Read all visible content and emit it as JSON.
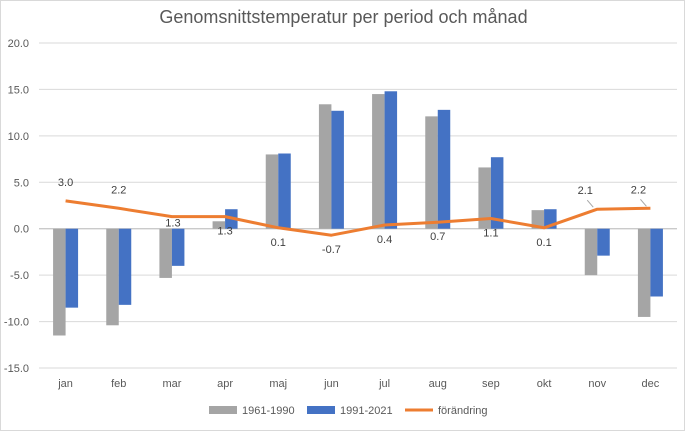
{
  "chart_data": {
    "type": "bar",
    "title": "Genomsnittstemperatur per period och månad",
    "xlabel": "",
    "ylabel": "",
    "ylim": [
      -15,
      20
    ],
    "yticks": [
      "-15.0",
      "-10.0",
      "-5.0",
      "0.0",
      "5.0",
      "10.0",
      "15.0",
      "20.0"
    ],
    "grid": true,
    "legend_position": "bottom",
    "categories": [
      "jan",
      "feb",
      "mar",
      "apr",
      "maj",
      "jun",
      "jul",
      "aug",
      "sep",
      "okt",
      "nov",
      "dec"
    ],
    "series": [
      {
        "name": "1961-1990",
        "type": "bar",
        "color": "#a5a5a5",
        "values": [
          -11.5,
          -10.4,
          -5.3,
          0.8,
          8.0,
          13.4,
          14.5,
          12.1,
          6.6,
          2.0,
          -5.0,
          -9.5
        ]
      },
      {
        "name": "1991-2021",
        "type": "bar",
        "color": "#4472c4",
        "values": [
          -8.5,
          -8.2,
          -4.0,
          2.1,
          8.1,
          12.7,
          14.8,
          12.8,
          7.7,
          2.1,
          -2.9,
          -7.3
        ]
      },
      {
        "name": "förändring",
        "type": "line",
        "color": "#ed7d31",
        "values": [
          3.0,
          2.2,
          1.3,
          1.3,
          0.1,
          -0.7,
          0.4,
          0.7,
          1.1,
          0.1,
          2.1,
          2.2
        ],
        "labels": [
          "3.0",
          "2.2",
          "1.3",
          "1.3",
          "0.1",
          "-0.7",
          "0.4",
          "0.7",
          "1.1",
          "0.1",
          "2.1",
          "2.2"
        ]
      }
    ]
  }
}
